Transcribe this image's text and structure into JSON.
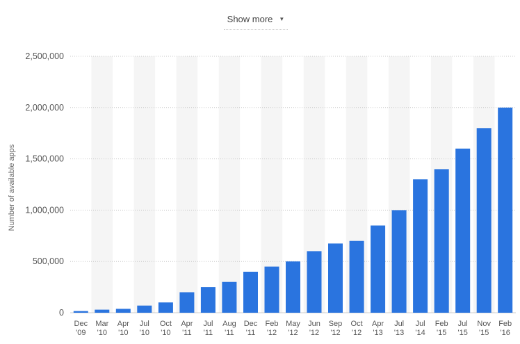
{
  "controls": {
    "show_more_label": "Show more",
    "show_more_icon": "caret-down-icon"
  },
  "colors": {
    "bar": "#2a74df",
    "grid": "#c8c8c8",
    "band": "#f5f5f5",
    "tick_text": "#555555"
  },
  "chart_data": {
    "type": "bar",
    "ylabel": "Number of available apps",
    "ylim": [
      0,
      2500000
    ],
    "yticks": [
      0,
      500000,
      1000000,
      1500000,
      2000000,
      2500000
    ],
    "ytick_labels": [
      "0",
      "500,000",
      "1,000,000",
      "1,500,000",
      "2,000,000",
      "2,500,000"
    ],
    "grid": "horizontal, dotted",
    "categories": [
      [
        "Dec",
        "'09"
      ],
      [
        "Mar",
        "'10"
      ],
      [
        "Apr",
        "'10"
      ],
      [
        "Jul",
        "'10"
      ],
      [
        "Oct",
        "'10"
      ],
      [
        "Apr",
        "'11"
      ],
      [
        "Jul",
        "'11"
      ],
      [
        "Aug",
        "'11"
      ],
      [
        "Dec",
        "'11"
      ],
      [
        "Feb",
        "'12"
      ],
      [
        "May",
        "'12"
      ],
      [
        "Jun",
        "'12"
      ],
      [
        "Sep",
        "'12"
      ],
      [
        "Oct",
        "'12"
      ],
      [
        "Apr",
        "'13"
      ],
      [
        "Jul",
        "'13"
      ],
      [
        "Jul",
        "'14"
      ],
      [
        "Feb",
        "'15"
      ],
      [
        "Jul",
        "'15"
      ],
      [
        "Nov",
        "'15"
      ],
      [
        "Feb",
        "'16"
      ]
    ],
    "values": [
      16000,
      30000,
      38000,
      70000,
      100000,
      200000,
      250000,
      300000,
      400000,
      450000,
      500000,
      600000,
      675000,
      700000,
      850000,
      1000000,
      1300000,
      1400000,
      1600000,
      1800000,
      2000000
    ]
  }
}
